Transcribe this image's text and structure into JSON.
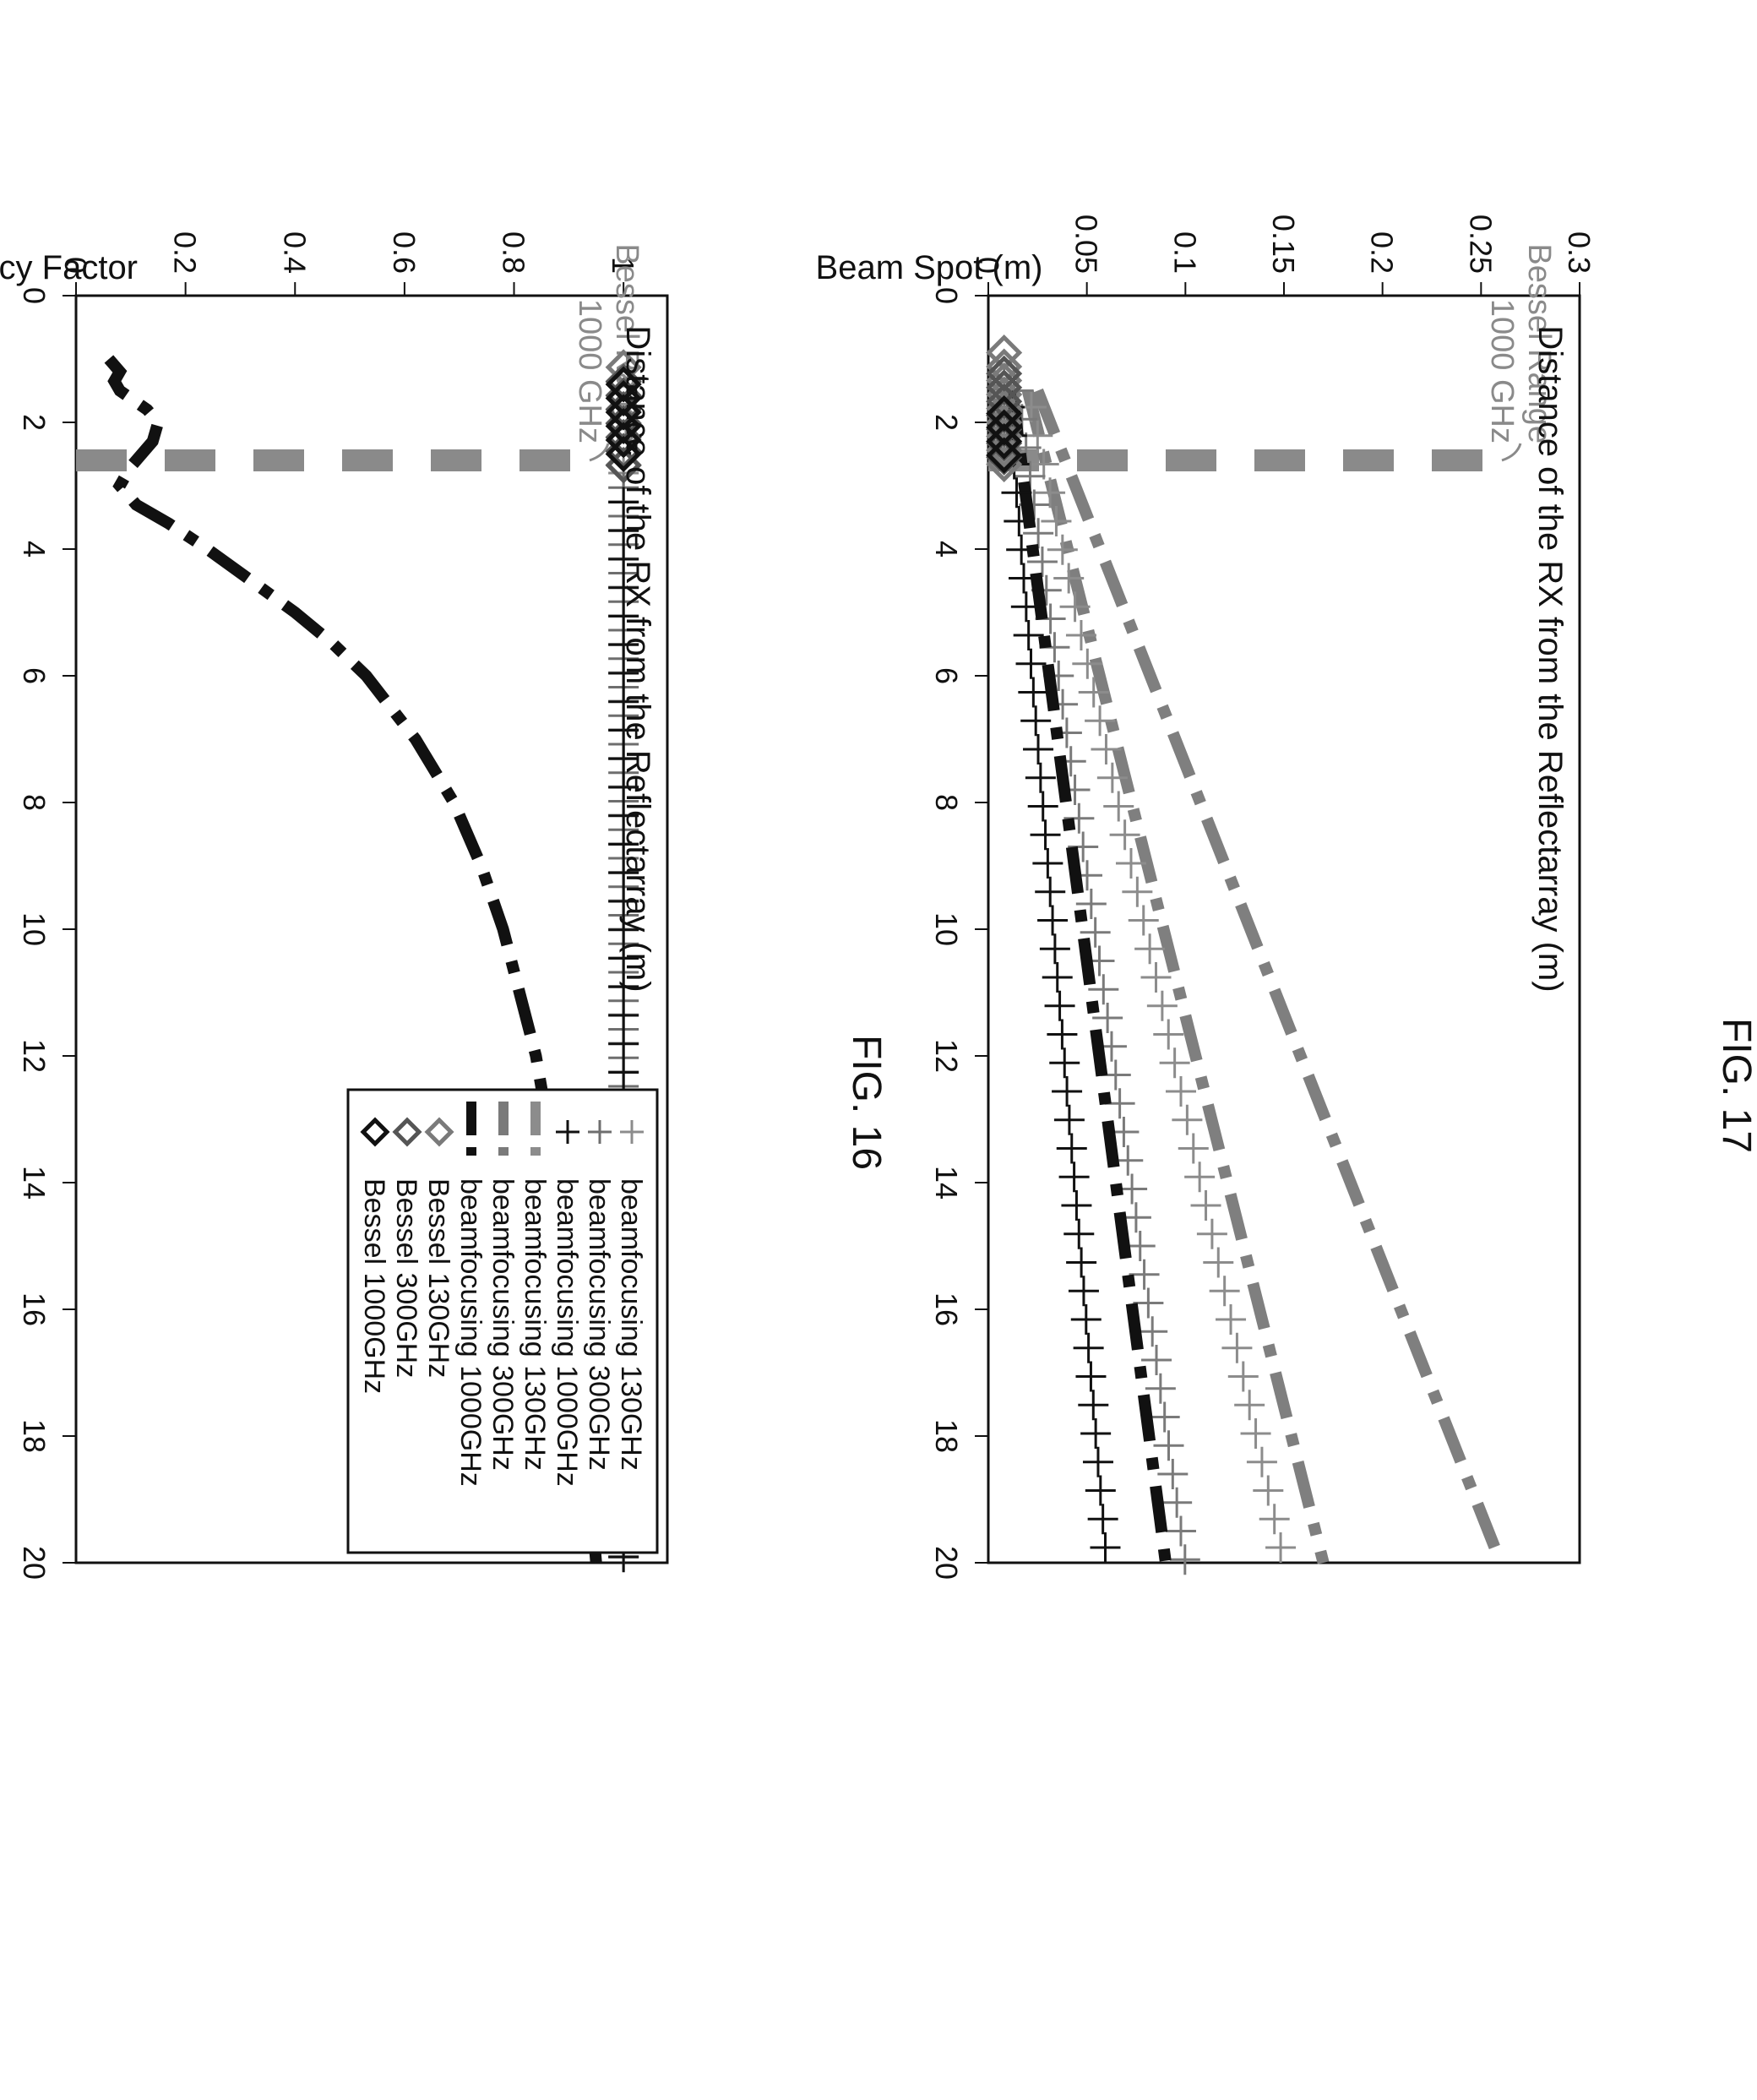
{
  "figures": {
    "fig16": {
      "caption": "FIG. 16"
    },
    "fig17": {
      "caption": "FIG. 17"
    }
  },
  "chart_data": [
    {
      "id": "fig16",
      "type": "line",
      "title": "",
      "xlabel": "Distance of the RX from the Reflectarray (m)",
      "ylabel": "Efficency Factor",
      "xlim": [
        0,
        20
      ],
      "ylim": [
        0,
        1.08
      ],
      "x_ticks": [
        "0",
        "2",
        "4",
        "6",
        "8",
        "10",
        "12",
        "14",
        "16",
        "18",
        "20"
      ],
      "y_ticks": [
        "0",
        "0.2",
        "0.4",
        "0.6",
        "0.8",
        "1"
      ],
      "legend": {
        "placement": "top-right",
        "entries": [
          "beamfocusing 130GHz",
          "beamfocusing 300GHz",
          "beamfocusing 1000GHz",
          "beamfocusing 130GHz",
          "beamfocusing 300GHz",
          "beamfocusing 1000GHz",
          "Bessel 130GHz",
          "Bessel 300GHz",
          "Bessel 1000GHz"
        ]
      },
      "annotation": {
        "text": [
          "Bessel Range",
          "1000 GHz"
        ],
        "x": 2.6
      },
      "series": [
        {
          "name": "beamfocusing 130GHz",
          "style": "plus",
          "color": "#8c8c8c",
          "y_const": 1.0,
          "x_start": 2.8,
          "x_end": 20
        },
        {
          "name": "beamfocusing 300GHz",
          "style": "plus",
          "color": "#6e6e6e",
          "y_const": 1.0,
          "x_start": 2.9,
          "x_end": 20
        },
        {
          "name": "beamfocusing 1000GHz",
          "style": "plus",
          "color": "#111111",
          "y_const": 1.0,
          "x_start": 3.0,
          "x_end": 20
        },
        {
          "name": "beamfocusing 1000GHz",
          "style": "dashdot",
          "color": "#111111",
          "points": [
            [
              1.0,
              0.06
            ],
            [
              1.2,
              0.08
            ],
            [
              1.35,
              0.07
            ],
            [
              1.5,
              0.08
            ],
            [
              1.8,
              0.13
            ],
            [
              2.0,
              0.15
            ],
            [
              2.3,
              0.14
            ],
            [
              2.7,
              0.1
            ],
            [
              3.0,
              0.08
            ],
            [
              3.3,
              0.11
            ],
            [
              3.6,
              0.17
            ],
            [
              4.0,
              0.24
            ],
            [
              4.5,
              0.32
            ],
            [
              5.0,
              0.4
            ],
            [
              5.5,
              0.47
            ],
            [
              6.0,
              0.53
            ],
            [
              7.0,
              0.62
            ],
            [
              8.0,
              0.69
            ],
            [
              9.0,
              0.74
            ],
            [
              10.0,
              0.78
            ],
            [
              12.0,
              0.84
            ],
            [
              14.0,
              0.88
            ],
            [
              16.0,
              0.91
            ],
            [
              18.0,
              0.93
            ],
            [
              20.0,
              0.95
            ]
          ]
        },
        {
          "name": "Bessel 130GHz",
          "style": "diamond",
          "color": "#7a7a7a",
          "y_const": 1.0,
          "x_start": 1.0,
          "x_end": 2.7
        },
        {
          "name": "Bessel 300GHz",
          "style": "diamond",
          "color": "#555555",
          "y_const": 1.0,
          "x_start": 1.1,
          "x_end": 2.7
        },
        {
          "name": "Bessel 1000GHz",
          "style": "diamond",
          "color": "#111111",
          "y_const": 1.0,
          "x_start": 1.4,
          "x_end": 2.7
        }
      ]
    },
    {
      "id": "fig17",
      "type": "line",
      "title": "",
      "xlabel": "Distance of the RX from the Reflectarray (m)",
      "ylabel": "Beam Spot (m)",
      "xlim": [
        0,
        20
      ],
      "ylim": [
        0,
        0.3
      ],
      "x_ticks": [
        "0",
        "2",
        "4",
        "6",
        "8",
        "10",
        "12",
        "14",
        "16",
        "18",
        "20"
      ],
      "y_ticks": [
        "0",
        "0.05",
        "0.1",
        "0.15",
        "0.2",
        "0.25",
        "0.3"
      ],
      "annotation": {
        "text": [
          "Bessel Range",
          "1000 GHz"
        ],
        "x": 2.6
      },
      "series": [
        {
          "name": "beamfocusing 130GHz",
          "style": "dashdot",
          "color": "#7f7f7f",
          "points": [
            [
              1.5,
              0.025
            ],
            [
              20,
              0.26
            ]
          ]
        },
        {
          "name": "beamfocusing 300GHz",
          "style": "dashdot",
          "color": "#7f7f7f",
          "points": [
            [
              1.5,
              0.02
            ],
            [
              20,
              0.17
            ]
          ]
        },
        {
          "name": "beamfocusing 130GHz",
          "style": "plus",
          "color": "#8c8c8c",
          "points": [
            [
              1.5,
              0.02
            ],
            [
              20,
              0.15
            ]
          ]
        },
        {
          "name": "beamfocusing 300GHz",
          "style": "plus",
          "color": "#7a7a7a",
          "points": [
            [
              1.5,
              0.015
            ],
            [
              20,
              0.1
            ]
          ]
        },
        {
          "name": "beamfocusing 1000GHz",
          "style": "dashdot",
          "color": "#111111",
          "points": [
            [
              1.5,
              0.012
            ],
            [
              20,
              0.09
            ]
          ]
        },
        {
          "name": "beamfocusing 1000GHz",
          "style": "plus",
          "color": "#111111",
          "points": [
            [
              1.5,
              0.01
            ],
            [
              20,
              0.06
            ]
          ]
        },
        {
          "name": "Bessel 130GHz",
          "style": "diamond",
          "color": "#7a7a7a",
          "y_const": 0.008,
          "x_start": 0.9,
          "x_end": 2.7
        },
        {
          "name": "Bessel 300GHz",
          "style": "diamond",
          "color": "#555555",
          "y_const": 0.008,
          "x_start": 1.1,
          "x_end": 2.7
        },
        {
          "name": "Bessel 1000GHz",
          "style": "diamond",
          "color": "#111111",
          "y_const": 0.008,
          "x_start": 1.6,
          "x_end": 2.7
        }
      ]
    }
  ]
}
